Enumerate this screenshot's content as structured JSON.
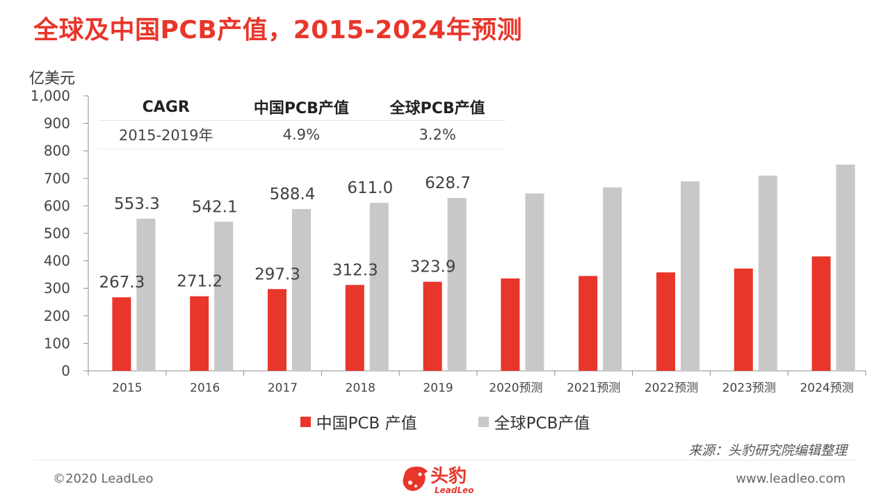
{
  "title": "全球及中国PCB产值，2015-2024年预测",
  "colors": {
    "accent": "#e8362b",
    "china": "#e8362b",
    "global": "#c8c8c8"
  },
  "chart_data": {
    "type": "bar",
    "unit": "亿美元",
    "categories": [
      "2015",
      "2016",
      "2017",
      "2018",
      "2019",
      "2020预测",
      "2021预测",
      "2022预测",
      "2023预测",
      "2024预测"
    ],
    "series": [
      {
        "name": "中国PCB 产值",
        "color": "#e8362b",
        "values": [
          267.3,
          271.2,
          297.3,
          312.3,
          323.9,
          336,
          345,
          358,
          372,
          416
        ],
        "labels": [
          "267.3",
          "271.2",
          "297.3",
          "312.3",
          "323.9",
          "",
          "",
          "",
          "",
          ""
        ]
      },
      {
        "name": "全球PCB产值",
        "color": "#c8c8c8",
        "values": [
          553.3,
          542.1,
          588.4,
          611.0,
          628.7,
          645,
          667,
          689,
          710,
          750
        ],
        "labels": [
          "553.3",
          "542.1",
          "588.4",
          "611.0",
          "628.7",
          "",
          "",
          "",
          "",
          ""
        ]
      }
    ],
    "ylim": [
      0,
      1000
    ],
    "yticks": [
      0,
      100,
      200,
      300,
      400,
      500,
      600,
      700,
      800,
      900,
      1000
    ],
    "ytick_labels": [
      "0",
      "100",
      "200",
      "300",
      "400",
      "500",
      "600",
      "700",
      "800",
      "900",
      "1,000"
    ],
    "legend": "bottom",
    "grid": false
  },
  "cagr_table": {
    "headers": [
      "CAGR",
      "中国PCB产值",
      "全球PCB产值"
    ],
    "row": [
      "2015-2019年",
      "4.9%",
      "3.2%"
    ]
  },
  "source": "来源：头豹研究院编辑整理",
  "footer": {
    "copyright": "©2020 LeadLeo",
    "website": "www.leadleo.com",
    "logo_cn": "头豹",
    "logo_en": "LeadLeo"
  }
}
